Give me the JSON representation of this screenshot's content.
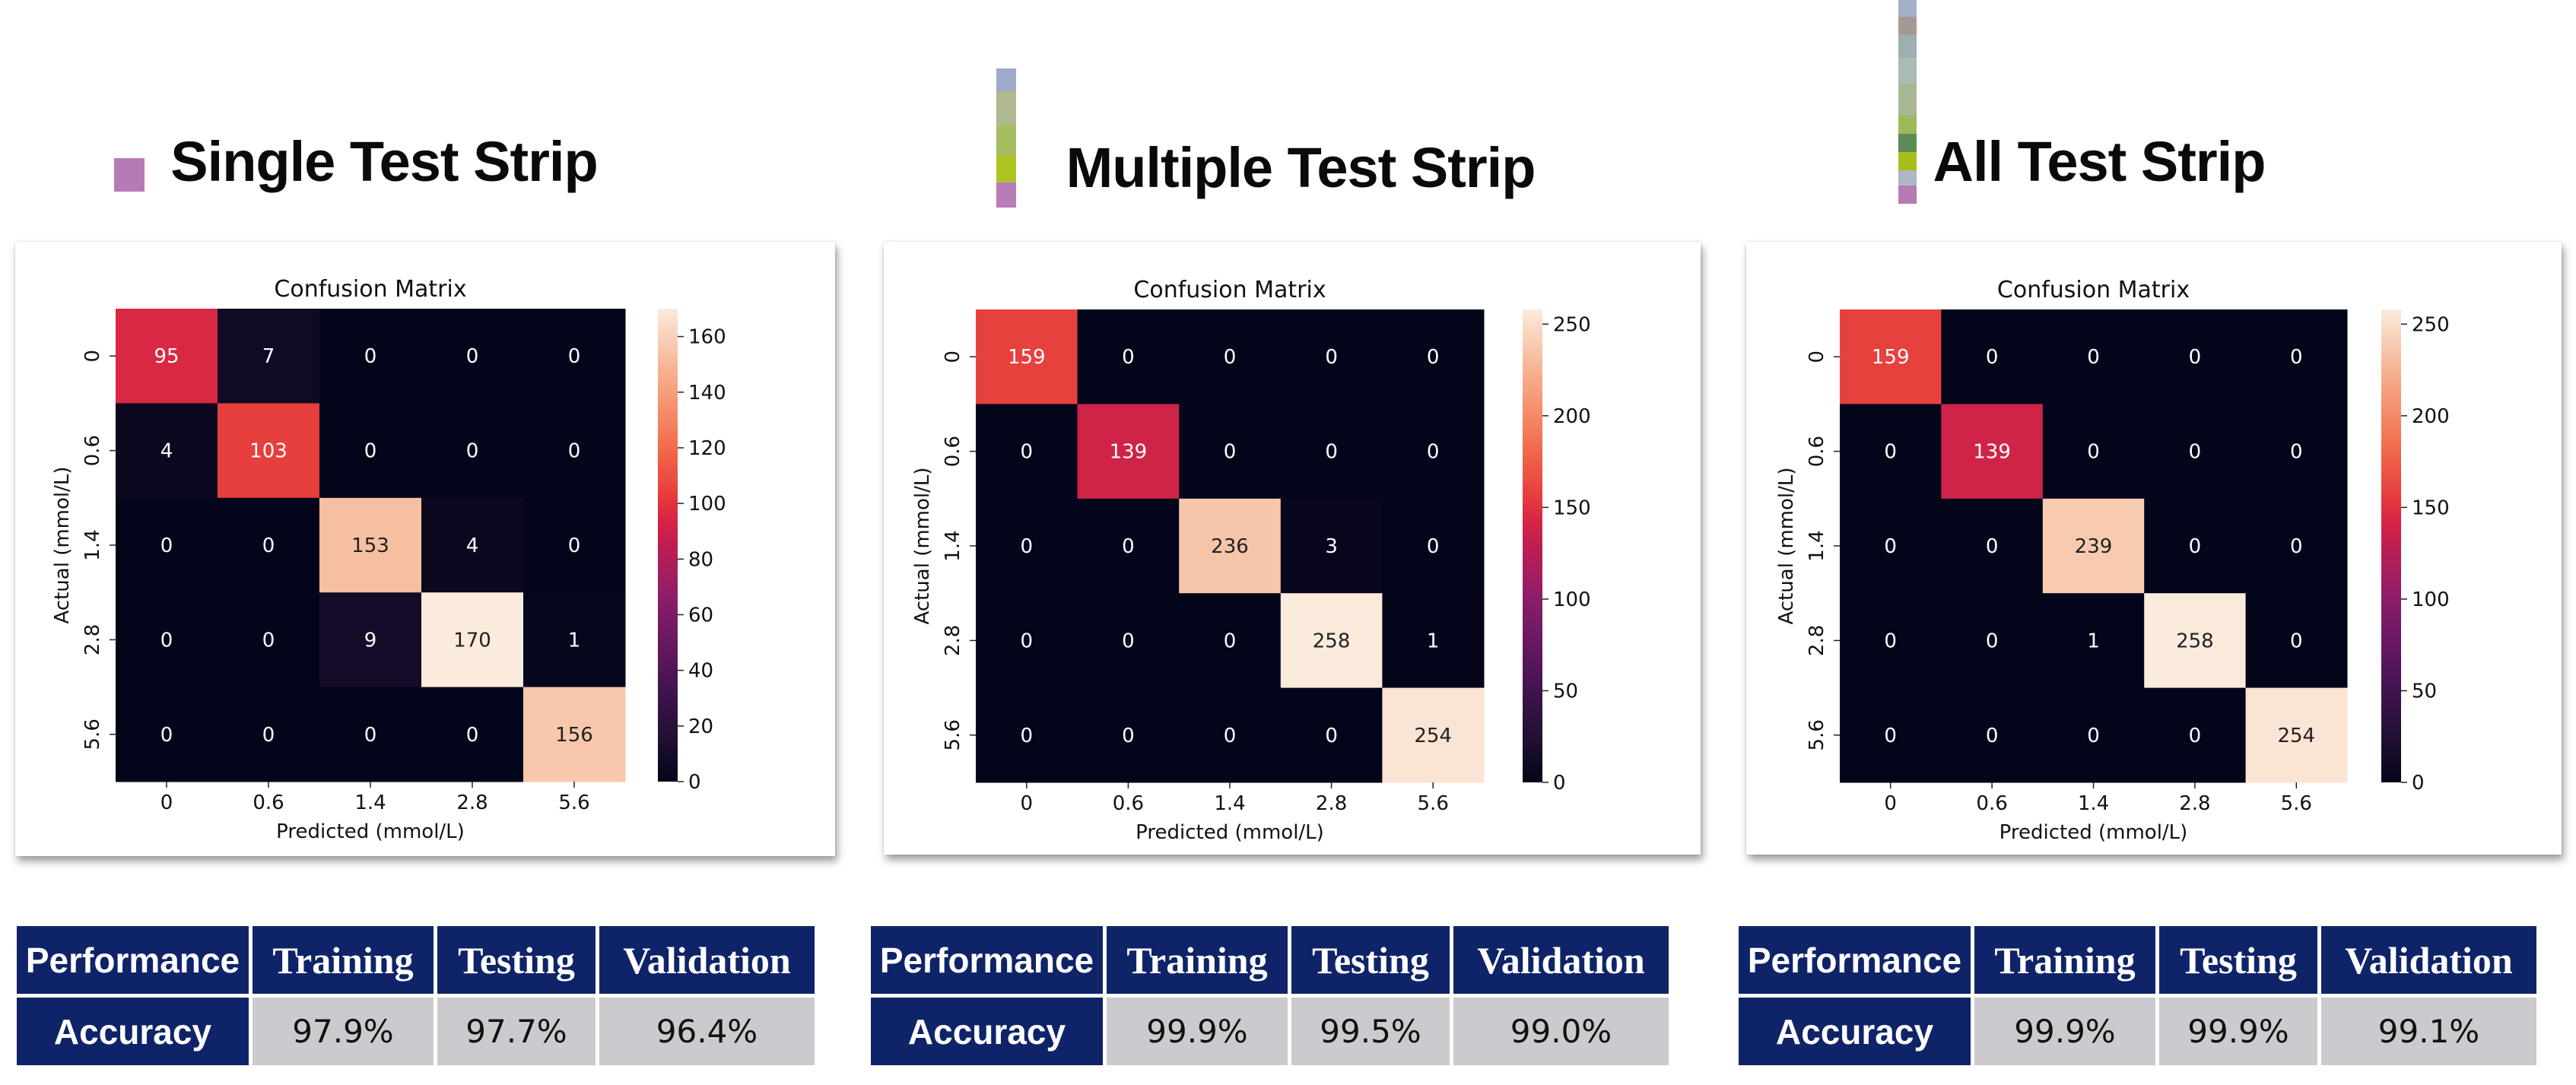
{
  "panels": [
    {
      "title": "Single Test Strip",
      "strip_colors": [
        "#b57bb6"
      ],
      "chart_data": {
        "type": "heatmap",
        "title": "Confusion Matrix",
        "xlabel": "Predicted (mmol/L)",
        "ylabel": "Actual (mmol/L)",
        "x_categories": [
          "0",
          "0.6",
          "1.4",
          "2.8",
          "5.6"
        ],
        "y_categories": [
          "0",
          "0.6",
          "1.4",
          "2.8",
          "5.6"
        ],
        "matrix": [
          [
            95,
            7,
            0,
            0,
            0
          ],
          [
            4,
            103,
            0,
            0,
            0
          ],
          [
            0,
            0,
            153,
            4,
            0
          ],
          [
            0,
            0,
            9,
            170,
            1
          ],
          [
            0,
            0,
            0,
            0,
            156
          ]
        ],
        "colorbar_ticks": [
          0,
          20,
          40,
          60,
          80,
          100,
          120,
          140,
          160
        ],
        "colorbar_range": [
          0,
          170
        ],
        "colormap": "rocket"
      },
      "table": {
        "headers": [
          "Performance",
          "Training",
          "Testing",
          "Validation"
        ],
        "row_label": "Accuracy",
        "values": [
          "97.9%",
          "97.7%",
          "96.4%"
        ]
      }
    },
    {
      "title": "Multiple Test Strip",
      "strip_colors": [
        "#9eabcb",
        "#aeb891",
        "#a5bc5f",
        "#afc423",
        "#b87cb7"
      ],
      "chart_data": {
        "type": "heatmap",
        "title": "Confusion Matrix",
        "xlabel": "Predicted (mmol/L)",
        "ylabel": "Actual (mmol/L)",
        "x_categories": [
          "0",
          "0.6",
          "1.4",
          "2.8",
          "5.6"
        ],
        "y_categories": [
          "0",
          "0.6",
          "1.4",
          "2.8",
          "5.6"
        ],
        "matrix": [
          [
            159,
            0,
            0,
            0,
            0
          ],
          [
            0,
            139,
            0,
            0,
            0
          ],
          [
            0,
            0,
            236,
            3,
            0
          ],
          [
            0,
            0,
            0,
            258,
            1
          ],
          [
            0,
            0,
            0,
            0,
            254
          ]
        ],
        "colorbar_ticks": [
          0,
          50,
          100,
          150,
          200,
          250
        ],
        "colorbar_range": [
          0,
          258
        ],
        "colormap": "rocket"
      },
      "table": {
        "headers": [
          "Performance",
          "Training",
          "Testing",
          "Validation"
        ],
        "row_label": "Accuracy",
        "values": [
          "99.9%",
          "99.5%",
          "99.0%"
        ]
      }
    },
    {
      "title": "All Test Strip",
      "strip_colors": [
        "#a4afc8",
        "#a39a94",
        "#9dafb0",
        "#a9bcb4",
        "#a9b795",
        "#9cbb58",
        "#5e8a58",
        "#a7bf1c",
        "#adb7c6",
        "#b57bb4"
      ],
      "chart_data": {
        "type": "heatmap",
        "title": "Confusion Matrix",
        "xlabel": "Predicted (mmol/L)",
        "ylabel": "Actual (mmol/L)",
        "x_categories": [
          "0",
          "0.6",
          "1.4",
          "2.8",
          "5.6"
        ],
        "y_categories": [
          "0",
          "0.6",
          "1.4",
          "2.8",
          "5.6"
        ],
        "matrix": [
          [
            159,
            0,
            0,
            0,
            0
          ],
          [
            0,
            139,
            0,
            0,
            0
          ],
          [
            0,
            0,
            239,
            0,
            0
          ],
          [
            0,
            0,
            1,
            258,
            0
          ],
          [
            0,
            0,
            0,
            0,
            254
          ]
        ],
        "colorbar_ticks": [
          0,
          50,
          100,
          150,
          200,
          250
        ],
        "colorbar_range": [
          0,
          258
        ],
        "colormap": "rocket"
      },
      "table": {
        "headers": [
          "Performance",
          "Training",
          "Testing",
          "Validation"
        ],
        "row_label": "Accuracy",
        "values": [
          "99.9%",
          "99.9%",
          "99.1%"
        ]
      }
    }
  ]
}
